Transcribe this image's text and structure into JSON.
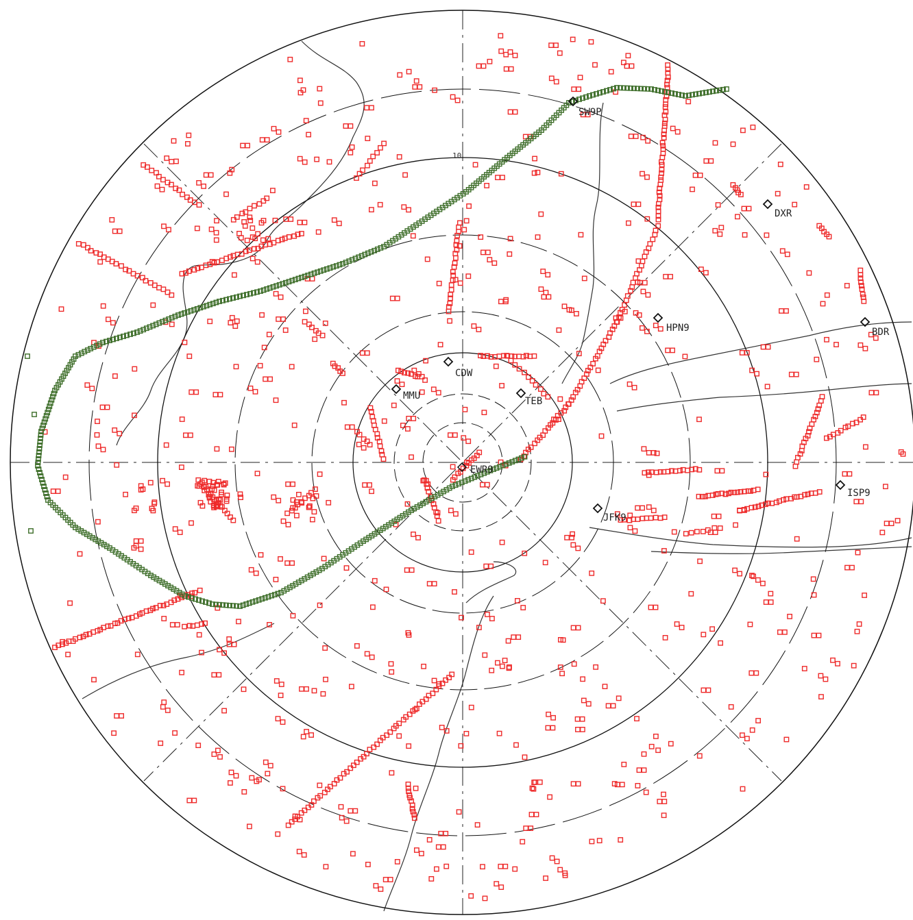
{
  "scope": {
    "range_label": "10",
    "colors": {
      "ring": "#111111",
      "crosshair": "#222222",
      "coast": "#333333",
      "clutter": "#ee2a2a",
      "track": "#3e6e2a",
      "track_mark": "#e0b000"
    }
  },
  "fixes": [
    {
      "id": "SW9P",
      "label": "SW9P"
    },
    {
      "id": "DXR",
      "label": "DXR"
    },
    {
      "id": "HPN9",
      "label": "HPN9"
    },
    {
      "id": "BDR",
      "label": "BDR"
    },
    {
      "id": "CDW",
      "label": "CDW"
    },
    {
      "id": "MMU",
      "label": "MMU"
    },
    {
      "id": "TEB",
      "label": "TEB"
    },
    {
      "id": "EWR",
      "label": "EWR9"
    },
    {
      "id": "JFK9",
      "label": "JFK9"
    },
    {
      "id": "ISP9",
      "label": "ISP9"
    }
  ],
  "legend_icons": [
    "fix-diamond-icon",
    "clutter-square-icon",
    "track-square-icon"
  ]
}
